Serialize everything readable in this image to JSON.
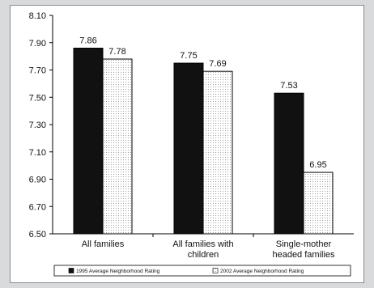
{
  "chart_data": {
    "type": "bar",
    "categories": [
      [
        "All families"
      ],
      [
        "All families with",
        "children"
      ],
      [
        "Single-mother",
        "headed families"
      ]
    ],
    "series": [
      {
        "name": "1995 Average Neighborhood Rating",
        "values": [
          7.86,
          7.75,
          7.53
        ],
        "fill": "#111111",
        "data_labels": [
          "7.86",
          "7.75",
          "7.53"
        ]
      },
      {
        "name": "2002 Average Neighborhood Rating",
        "values": [
          7.78,
          7.69,
          6.95
        ],
        "fill": "dotted",
        "data_labels": [
          "7.78",
          "7.69",
          "6.95"
        ]
      }
    ],
    "ylim": [
      6.5,
      8.1
    ],
    "yticks": [
      "6.50",
      "6.70",
      "6.90",
      "7.10",
      "7.30",
      "7.50",
      "7.70",
      "7.90",
      "8.10"
    ],
    "title": "",
    "xlabel": "",
    "ylabel": "",
    "grid": false,
    "legend_position": "bottom"
  }
}
